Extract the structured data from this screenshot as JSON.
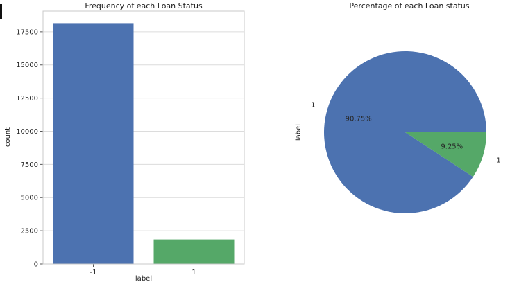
{
  "figure": {
    "background": "#ffffff"
  },
  "chart_data": [
    {
      "type": "bar",
      "title": "Frequency of each Loan Status",
      "xlabel": "label",
      "ylabel": "count",
      "categories": [
        "-1",
        "1"
      ],
      "values": [
        18150,
        1850
      ],
      "yticks": [
        0,
        2500,
        5000,
        7500,
        10000,
        12500,
        15000,
        17500
      ],
      "ylim": [
        0,
        19060
      ],
      "colors": [
        "#4c72b0",
        "#55a868"
      ],
      "grid": true,
      "legend": false
    },
    {
      "type": "pie",
      "title": "Percentage of each Loan status",
      "ylabel": "label",
      "labels": [
        "-1",
        "1"
      ],
      "values": [
        90.75,
        9.25
      ],
      "percent_labels": [
        "90.75%",
        "9.25%"
      ],
      "colors": [
        "#4c72b0",
        "#55a868"
      ],
      "start_angle_deg": 0,
      "direction": "counterclockwise"
    }
  ]
}
